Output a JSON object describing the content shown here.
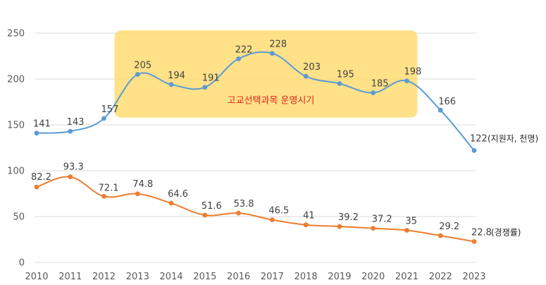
{
  "chart_data": {
    "type": "line",
    "title": "",
    "xlabel": "",
    "ylabel": "",
    "x": [
      "2010",
      "2011",
      "2012",
      "2013",
      "2014",
      "2015",
      "2016",
      "2017",
      "2018",
      "2019",
      "2020",
      "2021",
      "2022",
      "2023"
    ],
    "ylim": [
      0,
      250
    ],
    "yticks": [
      "0",
      "50",
      "100",
      "150",
      "200",
      "250"
    ],
    "grid": true,
    "series": [
      {
        "name": "지원자",
        "end_note": "(지원자, 천명)",
        "color": "#5b9bd5",
        "values": [
          141,
          143,
          157,
          205,
          194,
          191,
          222,
          228,
          203,
          195,
          185,
          198,
          166,
          122
        ],
        "labels": [
          "141",
          "143",
          "157",
          "205",
          "194",
          "191",
          "222",
          "228",
          "203",
          "195",
          "185",
          "198",
          "166",
          "122"
        ]
      },
      {
        "name": "경쟁률",
        "end_note": "(경쟁률)",
        "color": "#ed7d31",
        "values": [
          82.2,
          93.3,
          72.1,
          74.8,
          64.6,
          51.6,
          53.8,
          46.5,
          41,
          39.2,
          37.2,
          35,
          29.2,
          22.8
        ],
        "labels": [
          "82.2",
          "93.3",
          "72.1",
          "74.8",
          "64.6",
          "51.6",
          "53.8",
          "46.5",
          "41",
          "39.2",
          "37.2",
          "35",
          "29.2",
          "22.8"
        ]
      }
    ],
    "annotation": {
      "text": "고교선택과목 운영시기",
      "from": "2012",
      "to": "2021",
      "y_range": [
        158,
        253
      ],
      "fill": "#ffd966",
      "text_color": "#e0201b"
    }
  }
}
